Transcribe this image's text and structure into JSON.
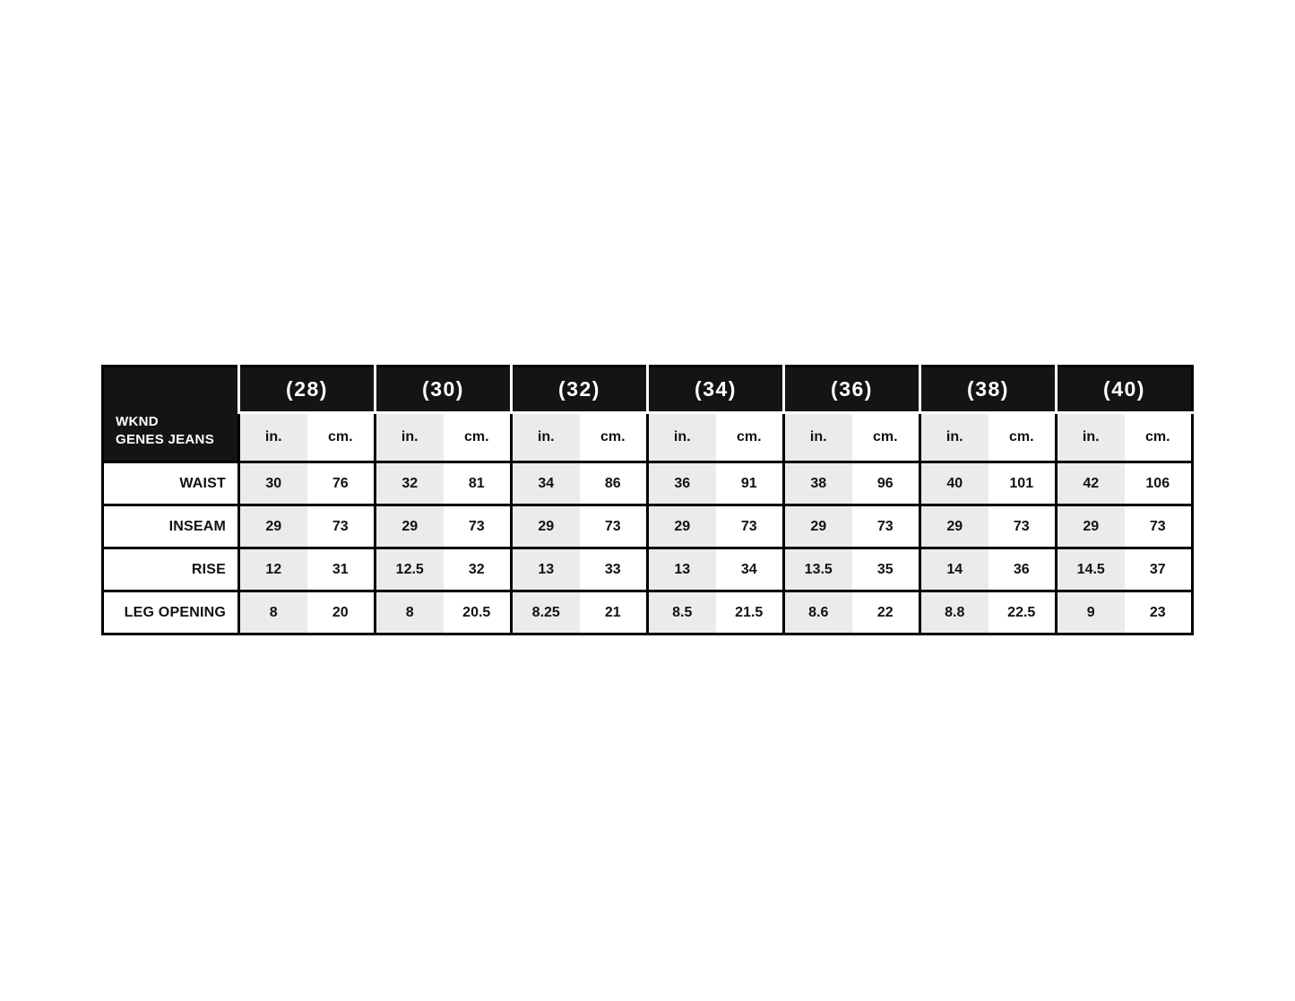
{
  "table": {
    "brand": {
      "line1": "WKND",
      "line2": "GENES JEANS"
    },
    "units": {
      "in": "in.",
      "cm": "cm."
    },
    "sizes": [
      "(28)",
      "(30)",
      "(32)",
      "(34)",
      "(36)",
      "(38)",
      "(40)"
    ],
    "rows": [
      {
        "label": "WAIST",
        "values": [
          [
            "30",
            "76"
          ],
          [
            "32",
            "81"
          ],
          [
            "34",
            "86"
          ],
          [
            "36",
            "91"
          ],
          [
            "38",
            "96"
          ],
          [
            "40",
            "101"
          ],
          [
            "42",
            "106"
          ]
        ]
      },
      {
        "label": "INSEAM",
        "values": [
          [
            "29",
            "73"
          ],
          [
            "29",
            "73"
          ],
          [
            "29",
            "73"
          ],
          [
            "29",
            "73"
          ],
          [
            "29",
            "73"
          ],
          [
            "29",
            "73"
          ],
          [
            "29",
            "73"
          ]
        ]
      },
      {
        "label": "RISE",
        "values": [
          [
            "12",
            "31"
          ],
          [
            "12.5",
            "32"
          ],
          [
            "13",
            "33"
          ],
          [
            "13",
            "34"
          ],
          [
            "13.5",
            "35"
          ],
          [
            "14",
            "36"
          ],
          [
            "14.5",
            "37"
          ]
        ]
      },
      {
        "label": "LEG OPENING",
        "values": [
          [
            "8",
            "20"
          ],
          [
            "8",
            "20.5"
          ],
          [
            "8.25",
            "21"
          ],
          [
            "8.5",
            "21.5"
          ],
          [
            "8.6",
            "22"
          ],
          [
            "8.8",
            "22.5"
          ],
          [
            "9",
            "23"
          ]
        ]
      }
    ],
    "colors": {
      "header_bg": "#141414",
      "header_text": "#ffffff",
      "border": "#000000",
      "in_column_bg": "#ebebeb",
      "body_text": "#111111"
    }
  }
}
